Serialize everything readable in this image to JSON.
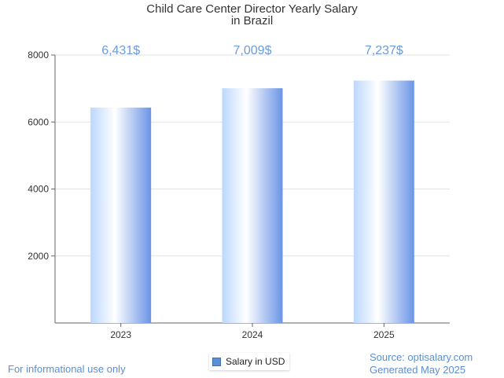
{
  "chart_data": {
    "type": "bar",
    "title_lines": [
      "Child Care Center Director Yearly Salary",
      "in Brazil"
    ],
    "categories": [
      "2023",
      "2024",
      "2025"
    ],
    "series": [
      {
        "name": "Salary in USD",
        "values": [
          6431,
          7009,
          7237
        ],
        "labels": [
          "6,431$",
          "7,009$",
          "7,237$"
        ]
      }
    ],
    "xlabel": "",
    "ylabel": "",
    "ylim": [
      0,
      8000
    ],
    "yticks": [
      2000,
      4000,
      6000,
      8000
    ],
    "grid": true,
    "legend": "bottom-center"
  },
  "colors": {
    "bar_light": "#ffffff",
    "bar_mid": "#bcd7ff",
    "bar_dark": "#6a94e6",
    "value_label": "#6a9ce0",
    "footer_text": "#5b8fd6",
    "gridline": "#e3e3e3",
    "axis": "#666666"
  },
  "footer": {
    "disclaimer": "For informational use only",
    "source": "Source: optisalary.com",
    "generated": "Generated May 2025"
  }
}
